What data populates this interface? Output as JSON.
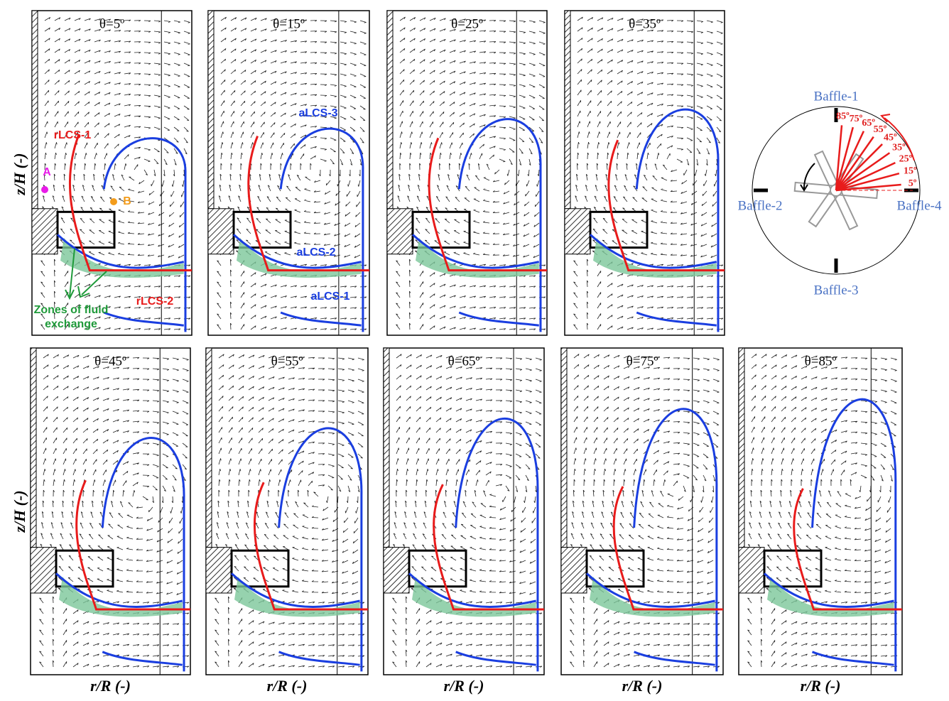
{
  "panels": [
    {
      "label": "θ=5º"
    },
    {
      "label": "θ=15º"
    },
    {
      "label": "θ=25º"
    },
    {
      "label": "θ=35º"
    },
    {
      "label": "θ=45º"
    },
    {
      "label": "θ=55º"
    },
    {
      "label": "θ=65º"
    },
    {
      "label": "θ=75º"
    },
    {
      "label": "θ=85º"
    }
  ],
  "axis_labels": {
    "y": "z/H  (-)",
    "x": "r/R  (-)"
  },
  "annotations": {
    "rlcs1": "rLCS-1",
    "rlcs2": "rLCS-2",
    "alcs1": "aLCS-1",
    "alcs2": "aLCS-2",
    "alcs3": "aLCS-3",
    "point_a": "A",
    "point_b": "B",
    "zones": [
      "Zones of fluid",
      "exchange"
    ]
  },
  "inset": {
    "baffles": [
      "Baffle-1",
      "Baffle-2",
      "Baffle-3",
      "Baffle-4"
    ],
    "angles": [
      "5º",
      "15º",
      "25º",
      "35º",
      "45º",
      "55º",
      "65º",
      "75º",
      "85º"
    ]
  }
}
